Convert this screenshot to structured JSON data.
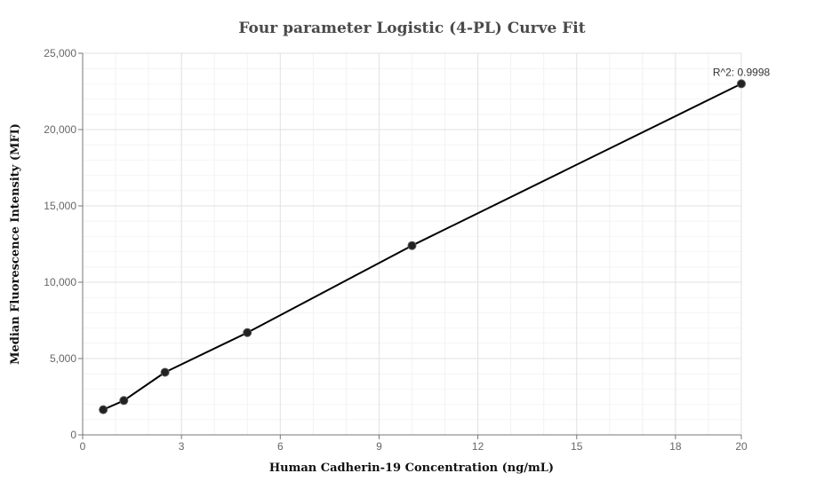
{
  "chart_data": {
    "type": "scatter",
    "title": "Four parameter Logistic (4-PL) Curve Fit",
    "xlabel": "Human Cadherin-19 Concentration (ng/mL)",
    "ylabel": "Median Fluorescence Intensity (MFI)",
    "xlim": [
      0,
      20
    ],
    "ylim": [
      0,
      25000
    ],
    "x_ticks": [
      0,
      3,
      6,
      9,
      12,
      15,
      18,
      20
    ],
    "y_ticks": [
      0,
      5000,
      10000,
      15000,
      20000,
      25000
    ],
    "x_tick_labels": [
      "0",
      "3",
      "6",
      "9",
      "12",
      "15",
      "18",
      "20"
    ],
    "y_tick_labels": [
      "0",
      "5,000",
      "10,000",
      "15,000",
      "20,000",
      "25,000"
    ],
    "grid": true,
    "legend": "none",
    "series": [
      {
        "points": [
          {
            "x": 0.625,
            "y": 1650
          },
          {
            "x": 1.25,
            "y": 2250
          },
          {
            "x": 2.5,
            "y": 4100
          },
          {
            "x": 5,
            "y": 6700
          },
          {
            "x": 10,
            "y": 12400
          },
          {
            "x": 20,
            "y": 23000
          }
        ],
        "fit_curve": true,
        "color": "#222222",
        "line_color": "#000000"
      }
    ],
    "annotations": [
      {
        "text": "R^2: 0.9998",
        "x": 20,
        "y": 23000
      }
    ]
  }
}
